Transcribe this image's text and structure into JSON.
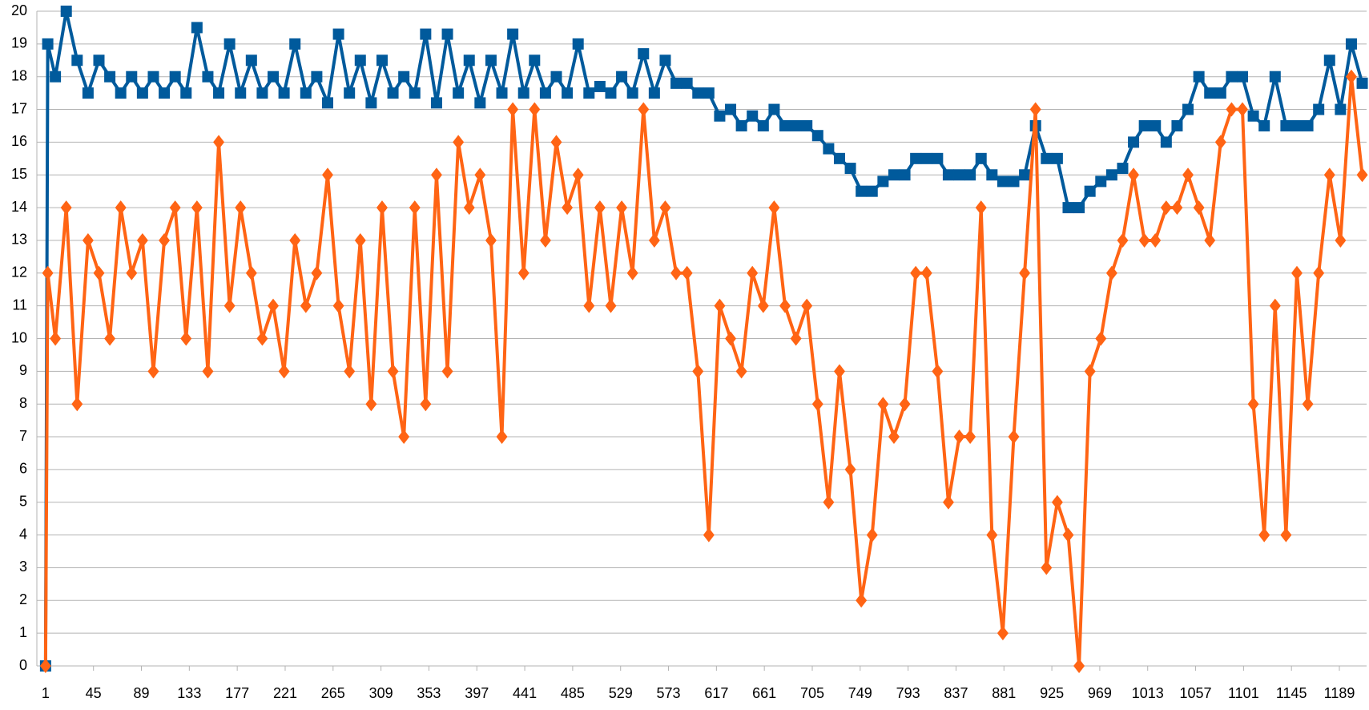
{
  "chart_data": {
    "type": "line",
    "x": [
      1,
      3,
      10,
      20,
      30,
      40,
      50,
      60,
      70,
      80,
      90,
      100,
      110,
      120,
      130,
      140,
      150,
      160,
      170,
      180,
      190,
      200,
      210,
      220,
      230,
      240,
      250,
      260,
      270,
      280,
      290,
      300,
      310,
      320,
      330,
      340,
      350,
      360,
      370,
      380,
      390,
      400,
      410,
      420,
      430,
      440,
      450,
      460,
      470,
      480,
      490,
      500,
      510,
      520,
      530,
      540,
      550,
      560,
      570,
      580,
      590,
      600,
      610,
      620,
      630,
      640,
      650,
      660,
      670,
      680,
      690,
      700,
      710,
      720,
      730,
      740,
      750,
      760,
      770,
      780,
      790,
      800,
      810,
      820,
      830,
      840,
      850,
      860,
      870,
      880,
      890,
      900,
      910,
      920,
      930,
      940,
      950,
      960,
      970,
      980,
      990,
      1000,
      1010,
      1020,
      1030,
      1040,
      1050,
      1060,
      1070,
      1080,
      1090,
      1100,
      1110,
      1120,
      1130,
      1140,
      1150,
      1160,
      1170,
      1180,
      1190,
      1200,
      1210
    ],
    "series": [
      {
        "color": "#005a9c",
        "marker": "square",
        "values": [
          0,
          19,
          18,
          20,
          18.5,
          17.5,
          18.5,
          18,
          17.5,
          18,
          17.5,
          18,
          17.5,
          18,
          17.5,
          19.5,
          18,
          17.5,
          19,
          17.5,
          18.5,
          17.5,
          18,
          17.5,
          19,
          17.5,
          18,
          17.2,
          19.3,
          17.5,
          18.5,
          17.2,
          18.5,
          17.5,
          18,
          17.5,
          19.3,
          17.2,
          19.3,
          17.5,
          18.5,
          17.2,
          18.5,
          17.5,
          19.3,
          17.5,
          18.5,
          17.5,
          18,
          17.5,
          19,
          17.5,
          17.7,
          17.5,
          18,
          17.5,
          18.7,
          17.5,
          18.5,
          17.8,
          17.8,
          17.5,
          17.5,
          16.8,
          17,
          16.5,
          16.8,
          16.5,
          17,
          16.5,
          16.5,
          16.5,
          16.2,
          15.8,
          15.5,
          15.2,
          14.5,
          14.5,
          14.8,
          15,
          15,
          15.5,
          15.5,
          15.5,
          15,
          15,
          15,
          15.5,
          15,
          14.8,
          14.8,
          15,
          16.5,
          15.5,
          15.5,
          14,
          14,
          14.5,
          14.8,
          15,
          15.2,
          16,
          16.5,
          16.5,
          16,
          16.5,
          17,
          18,
          17.5,
          17.5,
          18,
          18,
          16.8,
          16.5,
          18,
          16.5,
          16.5,
          16.5,
          17,
          18.5,
          17,
          19,
          17.8
        ]
      },
      {
        "color": "#ff6414",
        "marker": "diamond",
        "values": [
          0,
          12,
          10,
          14,
          8,
          13,
          12,
          10,
          14,
          12,
          13,
          9,
          13,
          14,
          10,
          14,
          9,
          16,
          11,
          14,
          12,
          10,
          11,
          9,
          13,
          11,
          12,
          15,
          11,
          9,
          13,
          8,
          14,
          9,
          7,
          14,
          8,
          15,
          9,
          16,
          14,
          15,
          13,
          7,
          17,
          12,
          17,
          13,
          16,
          14,
          15,
          11,
          14,
          11,
          14,
          12,
          17,
          13,
          14,
          12,
          12,
          9,
          4,
          11,
          10,
          9,
          12,
          11,
          14,
          11,
          10,
          11,
          8,
          5,
          9,
          6,
          2,
          4,
          8,
          7,
          8,
          12,
          12,
          9,
          5,
          7,
          7,
          14,
          4,
          1,
          7,
          12,
          17,
          3,
          5,
          4,
          0,
          9,
          10,
          12,
          13,
          15,
          13,
          13,
          14,
          14,
          15,
          14,
          13,
          16,
          17,
          17,
          8,
          4,
          11,
          4,
          12,
          8,
          12,
          15,
          13,
          18,
          15
        ]
      }
    ],
    "xlim": [
      -7,
      1214
    ],
    "xticks": [
      1,
      45,
      89,
      133,
      177,
      221,
      265,
      309,
      353,
      397,
      441,
      485,
      529,
      573,
      617,
      661,
      705,
      749,
      793,
      837,
      881,
      925,
      969,
      1013,
      1057,
      1101,
      1145,
      1189
    ],
    "ylim": [
      0,
      20
    ],
    "yticks": [
      0,
      1,
      2,
      3,
      4,
      5,
      6,
      7,
      8,
      9,
      10,
      11,
      12,
      13,
      14,
      15,
      16,
      17,
      18,
      19,
      20
    ],
    "grid": true
  }
}
